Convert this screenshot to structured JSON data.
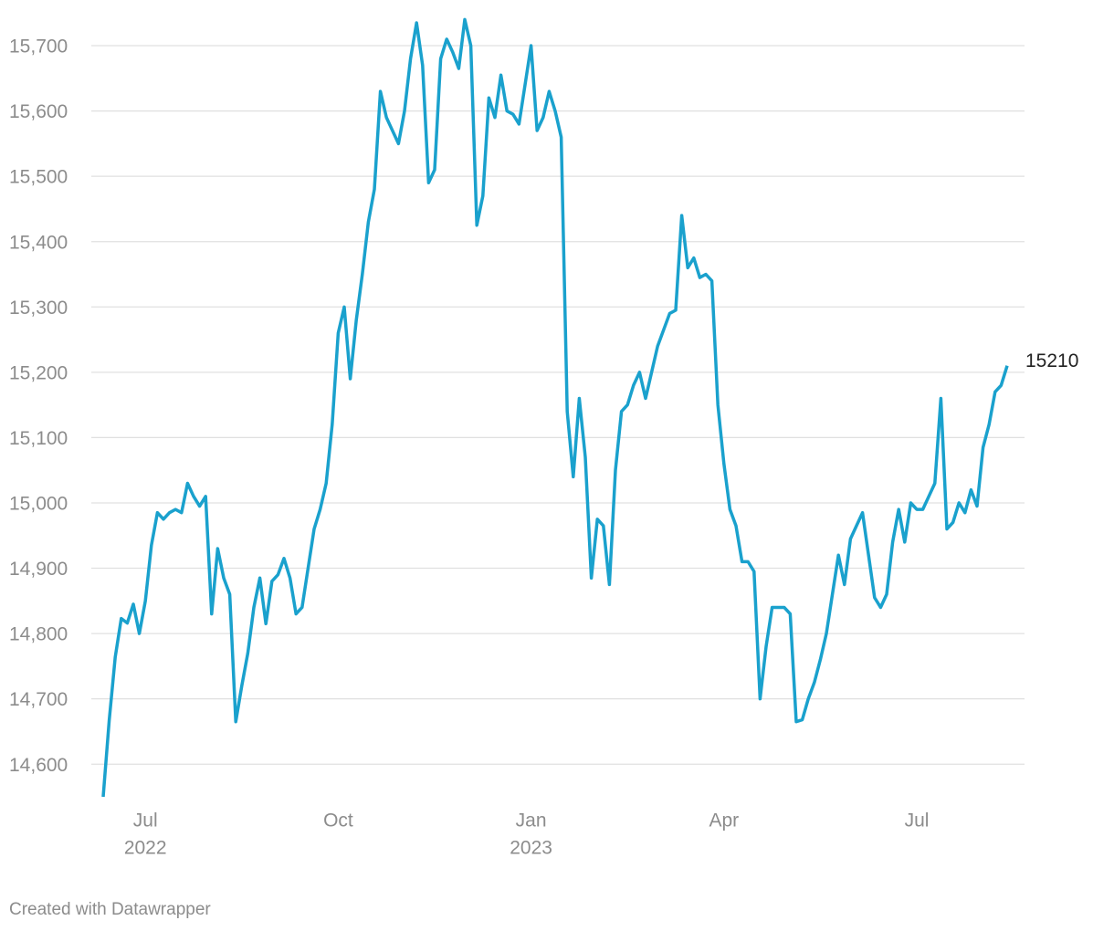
{
  "chart_data": {
    "type": "line",
    "categories": [
      null,
      null,
      null,
      null,
      null,
      null,
      null,
      "Jul",
      null,
      null,
      null,
      null,
      null,
      null,
      null,
      null,
      null,
      null,
      null,
      null,
      null,
      null,
      null,
      null,
      null,
      null,
      null,
      null,
      null,
      null,
      null,
      null,
      null,
      null,
      null,
      null,
      null,
      null,
      null,
      "Oct",
      null,
      null,
      null,
      null,
      null,
      null,
      null,
      null,
      null,
      null,
      null,
      null,
      null,
      null,
      null,
      null,
      null,
      null,
      null,
      null,
      null,
      null,
      null,
      null,
      null,
      null,
      null,
      null,
      null,
      null,
      null,
      "Jan",
      null,
      null,
      null,
      null,
      null,
      null,
      null,
      null,
      null,
      null,
      null,
      null,
      null,
      null,
      null,
      null,
      null,
      null,
      null,
      null,
      null,
      null,
      null,
      null,
      null,
      null,
      null,
      null,
      null,
      null,
      null,
      "Apr",
      null,
      null,
      null,
      null,
      null,
      null,
      null,
      null,
      null,
      null,
      null,
      null,
      null,
      null,
      null,
      null,
      null,
      null,
      null,
      null,
      null,
      null,
      null,
      null,
      null,
      null,
      null,
      null,
      null,
      null,
      null,
      "Jul",
      null,
      null,
      null,
      null,
      null,
      null,
      null,
      null,
      null,
      null,
      null,
      null,
      null,
      null,
      null
    ],
    "years": [
      null,
      null,
      null,
      null,
      null,
      null,
      null,
      "2022",
      null,
      null,
      null,
      null,
      null,
      null,
      null,
      null,
      null,
      null,
      null,
      null,
      null,
      null,
      null,
      null,
      null,
      null,
      null,
      null,
      null,
      null,
      null,
      null,
      null,
      null,
      null,
      null,
      null,
      null,
      null,
      null,
      null,
      null,
      null,
      null,
      null,
      null,
      null,
      null,
      null,
      null,
      null,
      null,
      null,
      null,
      null,
      null,
      null,
      null,
      null,
      null,
      null,
      null,
      null,
      null,
      null,
      null,
      null,
      null,
      null,
      null,
      null,
      "2023",
      null,
      null,
      null,
      null,
      null,
      null,
      null,
      null,
      null,
      null,
      null,
      null,
      null,
      null,
      null,
      null,
      null,
      null,
      null,
      null,
      null,
      null,
      null,
      null,
      null,
      null,
      null,
      null,
      null,
      null,
      null,
      null,
      null,
      null,
      null,
      null,
      null,
      null,
      null,
      null,
      null,
      null,
      null,
      null,
      null,
      null,
      null,
      null,
      null,
      null,
      null,
      null,
      null,
      null,
      null,
      null,
      null,
      null,
      null,
      null,
      null,
      null,
      null,
      null,
      null,
      null,
      null,
      null,
      null,
      null,
      null,
      null,
      null,
      null,
      null,
      null,
      null,
      null,
      null
    ],
    "values": [
      14550,
      14667,
      14764,
      14823,
      14816,
      14845,
      14800,
      14850,
      14935,
      14985,
      14975,
      14985,
      14990,
      14985,
      15030,
      15010,
      14995,
      15010,
      14830,
      14930,
      14885,
      14860,
      14665,
      14720,
      14770,
      14840,
      14885,
      14815,
      14880,
      14890,
      14915,
      14885,
      14830,
      14840,
      14900,
      14960,
      14990,
      15030,
      15120,
      15260,
      15300,
      15190,
      15280,
      15350,
      15430,
      15480,
      15630,
      15590,
      15570,
      15550,
      15600,
      15680,
      15735,
      15670,
      15490,
      15510,
      15680,
      15710,
      15690,
      15665,
      15740,
      15700,
      15425,
      15470,
      15620,
      15590,
      15655,
      15600,
      15595,
      15580,
      15640,
      15700,
      15570,
      15590,
      15630,
      15600,
      15560,
      15140,
      15040,
      15160,
      15070,
      14885,
      14975,
      14965,
      14875,
      15050,
      15140,
      15150,
      15180,
      15200,
      15160,
      15200,
      15240,
      15265,
      15290,
      15295,
      15440,
      15360,
      15375,
      15345,
      15350,
      15340,
      15150,
      15060,
      14990,
      14965,
      14910,
      14910,
      14895,
      14700,
      14780,
      14840,
      14840,
      14840,
      14830,
      14665,
      14668,
      14700,
      14725,
      14760,
      14800,
      14860,
      14920,
      14875,
      14945,
      14965,
      14985,
      14920,
      14855,
      14840,
      14860,
      14940,
      14990,
      14940,
      15000,
      14990,
      14990,
      15010,
      15030,
      15160,
      14960,
      14970,
      15000,
      14985,
      15020,
      14995,
      15085,
      15120,
      15170,
      15180,
      15210
    ],
    "color": "#1aa1cd",
    "ylim": [
      14550,
      15740
    ],
    "yticks": [
      {
        "value": 14600,
        "label": "14,600"
      },
      {
        "value": 14700,
        "label": "14,700"
      },
      {
        "value": 14800,
        "label": "14,800"
      },
      {
        "value": 14900,
        "label": "14,900"
      },
      {
        "value": 15000,
        "label": "15,000"
      },
      {
        "value": 15100,
        "label": "15,100"
      },
      {
        "value": 15200,
        "label": "15,200"
      },
      {
        "value": 15300,
        "label": "15,300"
      },
      {
        "value": 15400,
        "label": "15,400"
      },
      {
        "value": 15500,
        "label": "15,500"
      },
      {
        "value": 15600,
        "label": "15,600"
      },
      {
        "value": 15700,
        "label": "15,700"
      }
    ],
    "grid": true,
    "credit": "Created with Datawrapper"
  }
}
